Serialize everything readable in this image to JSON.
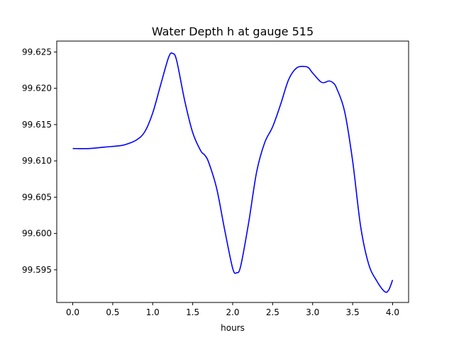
{
  "chart_data": {
    "type": "line",
    "title": "Water Depth h at gauge 515",
    "xlabel": "hours",
    "ylabel": "",
    "xlim": [
      -0.2,
      4.2
    ],
    "ylim": [
      99.5905,
      99.6265
    ],
    "xticks": [
      0.0,
      0.5,
      1.0,
      1.5,
      2.0,
      2.5,
      3.0,
      3.5,
      4.0
    ],
    "xtick_labels": [
      "0.0",
      "0.5",
      "1.0",
      "1.5",
      "2.0",
      "2.5",
      "3.0",
      "3.5",
      "4.0"
    ],
    "yticks": [
      99.595,
      99.6,
      99.605,
      99.61,
      99.615,
      99.62,
      99.625
    ],
    "ytick_labels": [
      "99.595",
      "99.600",
      "99.605",
      "99.610",
      "99.615",
      "99.620",
      "99.625"
    ],
    "grid": false,
    "series": [
      {
        "color": "#0000ff",
        "x": [
          0.0,
          0.2,
          0.4,
          0.6,
          0.7,
          0.8,
          0.9,
          1.0,
          1.1,
          1.2,
          1.25,
          1.3,
          1.4,
          1.5,
          1.6,
          1.65,
          1.7,
          1.8,
          1.9,
          2.0,
          2.05,
          2.1,
          2.2,
          2.3,
          2.4,
          2.5,
          2.6,
          2.7,
          2.8,
          2.9,
          2.95,
          3.0,
          3.1,
          3.15,
          3.2,
          3.25,
          3.3,
          3.4,
          3.5,
          3.6,
          3.7,
          3.8,
          3.9,
          3.95,
          4.0
        ],
        "y": [
          99.6117,
          99.6117,
          99.6119,
          99.6121,
          99.6124,
          99.6129,
          99.614,
          99.6166,
          99.6205,
          99.6243,
          99.6248,
          99.6238,
          99.6183,
          99.6139,
          99.6114,
          99.6108,
          99.6098,
          99.6062,
          99.6005,
          99.5952,
          99.5946,
          99.5955,
          99.6015,
          99.6085,
          99.6125,
          99.6147,
          99.6178,
          99.6212,
          99.6228,
          99.623,
          99.6228,
          99.6221,
          99.6209,
          99.6208,
          99.621,
          99.6208,
          99.62,
          99.6168,
          99.61,
          99.601,
          99.5958,
          99.5935,
          99.592,
          99.5922,
          99.5936
        ]
      }
    ]
  }
}
